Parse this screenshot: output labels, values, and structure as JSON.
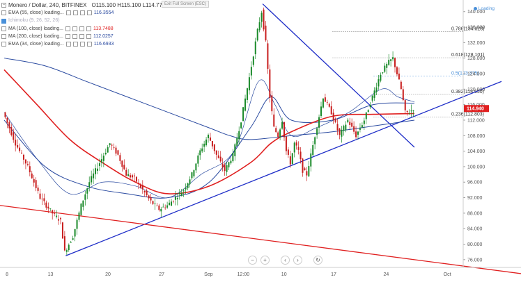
{
  "header": {
    "title": "Monero / Dollar, 240, BITFINEX",
    "ohlc": "O115.100 H115.100 L114.770 C114.940",
    "exit_fullscreen": "Exit Full Screen (ESC)",
    "loading": "Loading"
  },
  "indicators": [
    {
      "label": "EMA (55, close) loading...",
      "value": "116.3554",
      "color": "#2a4aa0"
    },
    {
      "label": "Ichimoku (9, 26, 52, 26)",
      "value": "",
      "color": "#aab"
    },
    {
      "label": "MA (100, close) loading...",
      "value": "113.7488",
      "color": "#e02020"
    },
    {
      "label": "MA (200, close) loading...",
      "value": "112.0257",
      "color": "#2a4aa0"
    },
    {
      "label": "EMA (34, close) loading...",
      "value": "116.6933",
      "color": "#2a4aa0"
    }
  ],
  "price_axis": {
    "ticks": [
      "140.000",
      "136.000",
      "132.000",
      "128.000",
      "124.000",
      "120.000",
      "116.000",
      "112.000",
      "108.000",
      "104.000",
      "100.000",
      "96.000",
      "92.000",
      "88.000",
      "84.000",
      "80.000",
      "76.000"
    ],
    "current_price": "114.940",
    "current_price_color": "#e02020"
  },
  "time_axis": {
    "labels": [
      "8",
      "13",
      "20",
      "27",
      "Sep",
      "12:00",
      "10",
      "17",
      "24",
      "Oct"
    ]
  },
  "fibonacci": [
    {
      "label": "0.786(134.828)",
      "value": 134.828
    },
    {
      "label": "0.618(128.101)",
      "value": 128.101
    },
    {
      "label": "0.5(123.375)",
      "value": 123.375
    },
    {
      "label": "0.382(118.650)",
      "value": 118.65
    },
    {
      "label": "0.236(112.803)",
      "value": 112.803
    }
  ],
  "chart_data": {
    "type": "line",
    "symbol": "XMR/USD",
    "ylim": [
      74,
      143
    ],
    "x_categories": [
      "8",
      "13",
      "20",
      "27",
      "Sep",
      "12:00",
      "10",
      "17",
      "24",
      "Oct"
    ],
    "price_path": [
      [
        0,
        114
      ],
      [
        3,
        106
      ],
      [
        6,
        100
      ],
      [
        9,
        92
      ],
      [
        12,
        88
      ],
      [
        14,
        86
      ],
      [
        15,
        78
      ],
      [
        17,
        82
      ],
      [
        19,
        90
      ],
      [
        21,
        96
      ],
      [
        23,
        100
      ],
      [
        26,
        106
      ],
      [
        28,
        103
      ],
      [
        30,
        98
      ],
      [
        32,
        97
      ],
      [
        34,
        94
      ],
      [
        36,
        91
      ],
      [
        38,
        89
      ],
      [
        40,
        90
      ],
      [
        42,
        92
      ],
      [
        44,
        94
      ],
      [
        46,
        98
      ],
      [
        48,
        104
      ],
      [
        50,
        108
      ],
      [
        52,
        103
      ],
      [
        54,
        99
      ],
      [
        56,
        103
      ],
      [
        58,
        112
      ],
      [
        60,
        123
      ],
      [
        62,
        135
      ],
      [
        63,
        140
      ],
      [
        64,
        132
      ],
      [
        65,
        118
      ],
      [
        66,
        110
      ],
      [
        67,
        108
      ],
      [
        68,
        112
      ],
      [
        69,
        104
      ],
      [
        70,
        101
      ],
      [
        71,
        106
      ],
      [
        72,
        104
      ],
      [
        73,
        99
      ],
      [
        74,
        98
      ],
      [
        76,
        108
      ],
      [
        78,
        118
      ],
      [
        80,
        114
      ],
      [
        82,
        108
      ],
      [
        84,
        112
      ],
      [
        86,
        108
      ],
      [
        88,
        112
      ],
      [
        90,
        118
      ],
      [
        92,
        124
      ],
      [
        94,
        127
      ],
      [
        95,
        128
      ],
      [
        96,
        124
      ],
      [
        97,
        120
      ],
      [
        98,
        114
      ],
      [
        99,
        114
      ],
      [
        100,
        115
      ]
    ],
    "series": [
      {
        "name": "EMA (55, close)",
        "color": "#2a4aa0",
        "points": [
          [
            0,
            112
          ],
          [
            10,
            100
          ],
          [
            20,
            95
          ],
          [
            30,
            93
          ],
          [
            40,
            92
          ],
          [
            50,
            96
          ],
          [
            60,
            110
          ],
          [
            65,
            118
          ],
          [
            70,
            112
          ],
          [
            80,
            112
          ],
          [
            90,
            116
          ],
          [
            100,
            116.4
          ]
        ]
      },
      {
        "name": "MA (100, close)",
        "color": "#e02020",
        "points": [
          [
            0,
            125
          ],
          [
            8,
            116
          ],
          [
            16,
            107
          ],
          [
            24,
            101
          ],
          [
            32,
            96
          ],
          [
            40,
            93
          ],
          [
            50,
            95
          ],
          [
            60,
            101
          ],
          [
            65,
            106
          ],
          [
            70,
            109
          ],
          [
            80,
            113
          ],
          [
            90,
            113.5
          ],
          [
            100,
            113.7
          ]
        ]
      },
      {
        "name": "MA (200, close)",
        "color": "#2a4aa0",
        "points": [
          [
            0,
            128
          ],
          [
            10,
            126
          ],
          [
            20,
            122
          ],
          [
            30,
            118
          ],
          [
            40,
            114
          ],
          [
            50,
            110
          ],
          [
            55,
            108
          ],
          [
            60,
            107
          ],
          [
            70,
            108
          ],
          [
            80,
            109
          ],
          [
            90,
            110.5
          ],
          [
            100,
            112
          ]
        ]
      },
      {
        "name": "EMA (34, close)",
        "color": "#2a4aa0",
        "points": [
          [
            0,
            114
          ],
          [
            8,
            102
          ],
          [
            16,
            93
          ],
          [
            24,
            96
          ],
          [
            32,
            95
          ],
          [
            40,
            92
          ],
          [
            48,
            98
          ],
          [
            56,
            104
          ],
          [
            62,
            122
          ],
          [
            66,
            116
          ],
          [
            70,
            108
          ],
          [
            76,
            110
          ],
          [
            84,
            114
          ],
          [
            92,
            120
          ],
          [
            96,
            118
          ],
          [
            100,
            116.7
          ]
        ]
      }
    ],
    "trendlines": [
      {
        "color": "#1f2ec8",
        "from": [
          15,
          77
        ],
        "to": [
          100,
          113
        ]
      },
      {
        "color": "#1f2ec8",
        "from": [
          63,
          142
        ],
        "to": [
          100,
          105
        ]
      },
      {
        "color": "#e02020",
        "from": [
          0,
          90
        ],
        "to": [
          100,
          74
        ]
      }
    ]
  }
}
